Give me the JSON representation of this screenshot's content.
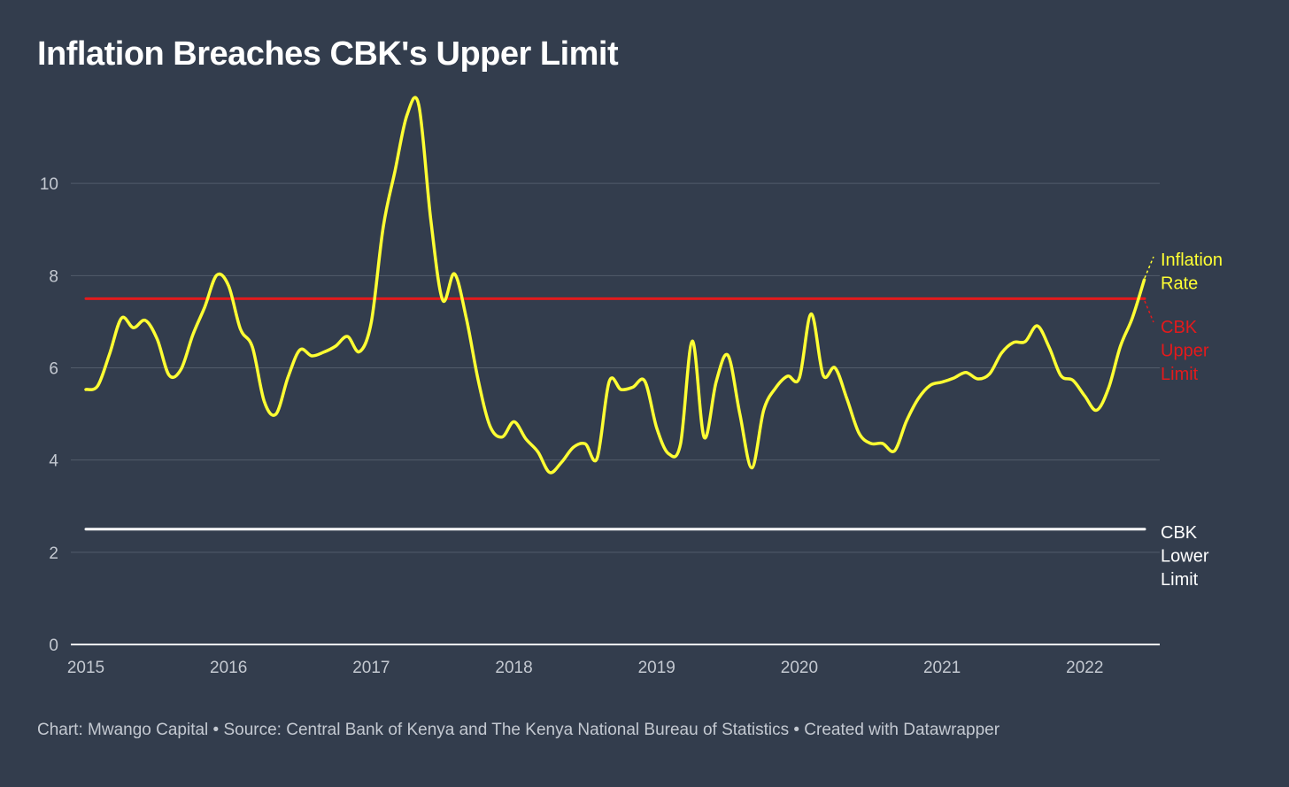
{
  "header": {
    "title": "Inflation Breaches CBK's Upper Limit"
  },
  "footer": {
    "credit": "Chart: Mwango Capital • Source: Central Bank of Kenya and The Kenya National Bureau of Statistics • Created with Datawrapper"
  },
  "colors": {
    "background": "#333d4d",
    "inflation": "#ffff33",
    "upper_limit": "#e31a1c",
    "lower_limit": "#ffffff",
    "gridline": "#525c6b",
    "tick_text": "#c4c9d1"
  },
  "chart_data": {
    "type": "line",
    "title": "Inflation Breaches CBK's Upper Limit",
    "xlabel": "",
    "ylabel": "",
    "xlim": [
      2015.0,
      2022.42
    ],
    "ylim": [
      0,
      12
    ],
    "grid": true,
    "x_ticks": [
      "2015",
      "2016",
      "2017",
      "2018",
      "2019",
      "2020",
      "2021",
      "2022"
    ],
    "y_ticks": [
      "0",
      "2",
      "4",
      "6",
      "8",
      "10"
    ],
    "series": [
      {
        "name": "Inflation Rate",
        "color": "#ffff33",
        "x": [
          2015.0,
          2015.083,
          2015.167,
          2015.25,
          2015.333,
          2015.417,
          2015.5,
          2015.583,
          2015.667,
          2015.75,
          2015.833,
          2015.917,
          2016.0,
          2016.083,
          2016.167,
          2016.25,
          2016.333,
          2016.417,
          2016.5,
          2016.583,
          2016.667,
          2016.75,
          2016.833,
          2016.917,
          2017.0,
          2017.083,
          2017.167,
          2017.25,
          2017.333,
          2017.417,
          2017.5,
          2017.583,
          2017.667,
          2017.75,
          2017.833,
          2017.917,
          2018.0,
          2018.083,
          2018.167,
          2018.25,
          2018.333,
          2018.417,
          2018.5,
          2018.583,
          2018.667,
          2018.75,
          2018.833,
          2018.917,
          2019.0,
          2019.083,
          2019.167,
          2019.25,
          2019.333,
          2019.417,
          2019.5,
          2019.583,
          2019.667,
          2019.75,
          2019.833,
          2019.917,
          2020.0,
          2020.083,
          2020.167,
          2020.25,
          2020.333,
          2020.417,
          2020.5,
          2020.583,
          2020.667,
          2020.75,
          2020.833,
          2020.917,
          2021.0,
          2021.083,
          2021.167,
          2021.25,
          2021.333,
          2021.417,
          2021.5,
          2021.583,
          2021.667,
          2021.75,
          2021.833,
          2021.917,
          2022.0,
          2022.083,
          2022.167,
          2022.25,
          2022.333,
          2022.417
        ],
        "y": [
          5.53,
          5.61,
          6.31,
          7.08,
          6.87,
          7.03,
          6.62,
          5.84,
          5.97,
          6.72,
          7.32,
          8.01,
          7.78,
          6.84,
          6.45,
          5.27,
          5.0,
          5.8,
          6.39,
          6.26,
          6.34,
          6.47,
          6.68,
          6.35,
          6.99,
          9.04,
          10.28,
          11.48,
          11.7,
          9.21,
          7.47,
          8.04,
          7.06,
          5.72,
          4.73,
          4.5,
          4.83,
          4.46,
          4.18,
          3.73,
          3.95,
          4.28,
          4.35,
          4.04,
          5.7,
          5.53,
          5.58,
          5.71,
          4.7,
          4.14,
          4.35,
          6.58,
          4.49,
          5.7,
          6.27,
          5.0,
          3.83,
          5.08,
          5.56,
          5.82,
          5.78,
          7.17,
          5.84,
          6.0,
          5.33,
          4.59,
          4.36,
          4.36,
          4.2,
          4.84,
          5.33,
          5.62,
          5.69,
          5.78,
          5.9,
          5.76,
          5.87,
          6.32,
          6.55,
          6.57,
          6.91,
          6.45,
          5.83,
          5.73,
          5.39,
          5.08,
          5.56,
          6.47,
          7.08,
          7.91
        ],
        "label_lines": [
          "Inflation",
          "Rate"
        ]
      },
      {
        "name": "CBK Upper Limit",
        "color": "#e31a1c",
        "x": [
          2015.0,
          2022.42
        ],
        "y": [
          7.5,
          7.5
        ],
        "label_lines": [
          "CBK",
          "Upper",
          "Limit"
        ]
      },
      {
        "name": "CBK Lower Limit",
        "color": "#ffffff",
        "x": [
          2015.0,
          2022.42
        ],
        "y": [
          2.5,
          2.5
        ],
        "label_lines": [
          "CBK",
          "Lower",
          "Limit"
        ]
      }
    ]
  }
}
